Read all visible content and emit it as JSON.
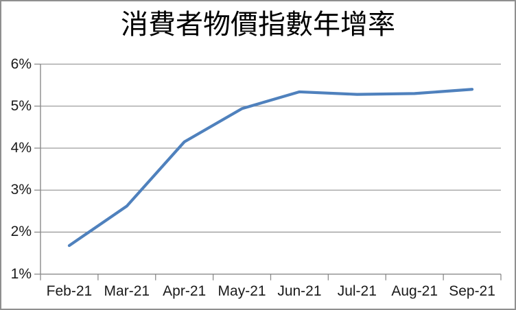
{
  "chart_data": {
    "type": "line",
    "title": "消費者物價指數年增率",
    "categories": [
      "Feb-21",
      "Mar-21",
      "Apr-21",
      "May-21",
      "Jun-21",
      "Jul-21",
      "Aug-21",
      "Sep-21"
    ],
    "values": [
      1.68,
      2.62,
      4.15,
      4.94,
      5.34,
      5.28,
      5.3,
      5.4
    ],
    "y_ticks": [
      {
        "label": "6%",
        "value": 6
      },
      {
        "label": "5%",
        "value": 5
      },
      {
        "label": "4%",
        "value": 4
      },
      {
        "label": "3%",
        "value": 3
      },
      {
        "label": "2%",
        "value": 2
      },
      {
        "label": "1%",
        "value": 1
      }
    ],
    "ylim": [
      1,
      6
    ],
    "xlabel": "",
    "ylabel": "",
    "grid": true,
    "legend": "none",
    "colors": {
      "line": "#4F81BD",
      "gridline": "#9c9c9c",
      "axis": "#8a8a8a",
      "tick": "#8a8a8a",
      "text": "#1a1a1a",
      "title_text": "#000000",
      "border": "#8f8f8f",
      "background": "#ffffff"
    }
  }
}
